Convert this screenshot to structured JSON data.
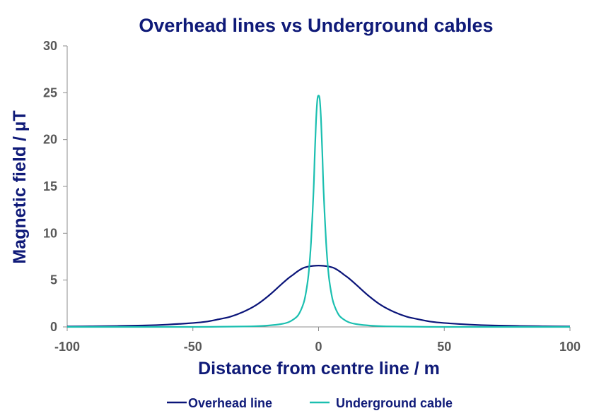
{
  "chart_data": {
    "type": "line",
    "title": "Overhead lines vs Underground cables",
    "xlabel": "Distance from centre line / m",
    "ylabel": "Magnetic field / µT",
    "xlim": [
      -100,
      100
    ],
    "ylim": [
      0,
      30
    ],
    "xticks": [
      -100,
      -50,
      0,
      50,
      100
    ],
    "yticks": [
      0,
      5,
      10,
      15,
      20,
      25,
      30
    ],
    "grid": false,
    "legend_position": "bottom",
    "series": [
      {
        "name": "Overhead line",
        "color": "#0a1479",
        "x": [
          -100,
          -90,
          -80,
          -70,
          -60,
          -50,
          -45,
          -40,
          -35,
          -30,
          -25,
          -20,
          -15,
          -12,
          -10,
          -8,
          -6,
          -4,
          -2,
          0,
          2,
          4,
          6,
          8,
          10,
          12,
          15,
          20,
          25,
          30,
          35,
          40,
          45,
          50,
          60,
          70,
          80,
          90,
          100
        ],
        "y": [
          0.05,
          0.07,
          0.1,
          0.15,
          0.25,
          0.42,
          0.55,
          0.8,
          1.1,
          1.6,
          2.3,
          3.3,
          4.5,
          5.2,
          5.6,
          6.0,
          6.3,
          6.45,
          6.52,
          6.55,
          6.52,
          6.45,
          6.3,
          6.0,
          5.6,
          5.2,
          4.5,
          3.3,
          2.3,
          1.6,
          1.1,
          0.8,
          0.55,
          0.42,
          0.25,
          0.15,
          0.1,
          0.07,
          0.05
        ]
      },
      {
        "name": "Underground cable",
        "color": "#1bbfb0",
        "x": [
          -100,
          -70,
          -50,
          -40,
          -30,
          -25,
          -20,
          -15,
          -12,
          -10,
          -8,
          -6,
          -5,
          -4,
          -3,
          -2,
          -1.5,
          -1,
          -0.5,
          0,
          0.5,
          1,
          1.5,
          2,
          3,
          4,
          5,
          6,
          8,
          10,
          12,
          15,
          20,
          25,
          30,
          40,
          50,
          70,
          100
        ],
        "y": [
          0.0,
          0.0,
          0.0,
          0.02,
          0.05,
          0.08,
          0.15,
          0.3,
          0.5,
          0.8,
          1.3,
          2.5,
          3.7,
          5.6,
          9.0,
          14.5,
          18.5,
          22.0,
          24.2,
          24.7,
          24.2,
          22.0,
          18.5,
          14.5,
          9.0,
          5.6,
          3.7,
          2.5,
          1.3,
          0.8,
          0.5,
          0.3,
          0.15,
          0.08,
          0.05,
          0.02,
          0.0,
          0.0,
          0.0
        ]
      }
    ]
  }
}
